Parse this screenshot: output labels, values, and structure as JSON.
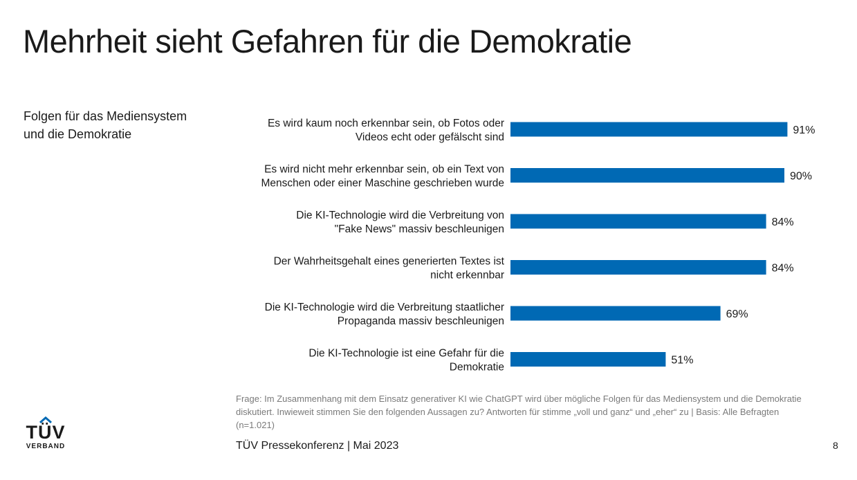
{
  "title": "Mehrheit sieht Gefahren für die Demokratie",
  "subtitle": [
    "Folgen für das Mediensystem",
    "und die Demokratie"
  ],
  "colors": {
    "bar": "#0069b4",
    "text": "#1a1a1a",
    "muted": "#7a7a7a"
  },
  "chart_data": {
    "type": "bar",
    "orientation": "horizontal",
    "title": "Folgen für das Mediensystem und die Demokratie",
    "categories": [
      [
        "Es wird kaum noch erkennbar sein, ob Fotos oder",
        "Videos echt oder gefälscht sind"
      ],
      [
        "Es wird nicht mehr erkennbar sein, ob ein Text von",
        "Menschen oder einer Maschine geschrieben wurde"
      ],
      [
        "Die KI-Technologie wird die Verbreitung von",
        "\"Fake News\" massiv beschleunigen"
      ],
      [
        "Der Wahrheitsgehalt eines generierten Textes ist",
        "nicht erkennbar"
      ],
      [
        "Die KI-Technologie wird die Verbreitung staatlicher",
        "Propaganda massiv beschleunigen"
      ],
      [
        "Die KI-Technologie ist eine Gefahr für die",
        "Demokratie"
      ]
    ],
    "values": [
      91,
      90,
      84,
      84,
      69,
      51
    ],
    "value_labels": [
      "91%",
      "90%",
      "84%",
      "84%",
      "69%",
      "51%"
    ],
    "xlim": [
      0,
      100
    ],
    "unit": "%"
  },
  "footnote": [
    "Frage: Im Zusammenhang mit dem Einsatz generativer KI wie ChatGPT wird über mögliche Folgen für das Mediensystem und die Demokratie",
    "diskutiert. Inwieweit stimmen Sie den folgenden Aussagen zu? Antworten für stimme „voll und ganz“ und „eher“ zu | Basis: Alle Befragten",
    "(n=1.021)"
  ],
  "footer": "TÜV Pressekonferenz | Mai 2023",
  "page_number": "8",
  "logo": {
    "name": "TÜV",
    "sub": "VERBAND"
  }
}
